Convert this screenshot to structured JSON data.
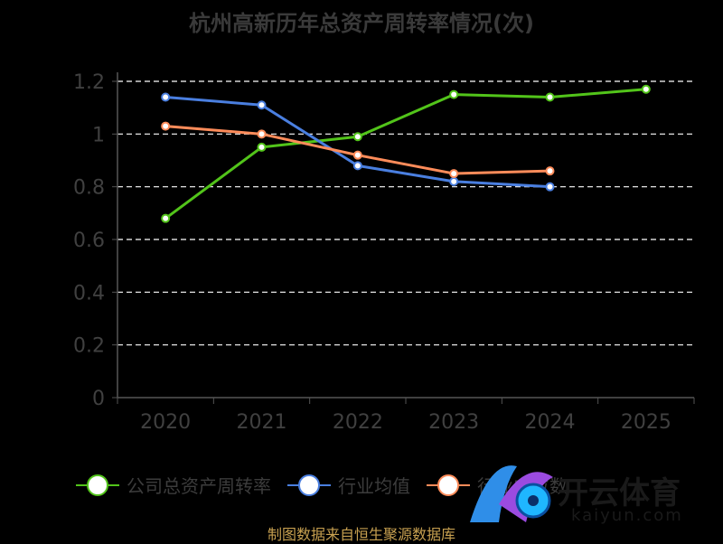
{
  "title": "杭州高新历年总资产周转率情况(次)",
  "unit_label": "",
  "source": "制图数据来自恒生聚源数据库",
  "watermark": {
    "cn": "开云体育",
    "url": "kaiyun.com"
  },
  "chart_data": {
    "type": "line",
    "title": "杭州高新历年总资产周转率情况(次)",
    "x": [
      "2020",
      "2021",
      "2022",
      "2023",
      "2024",
      "2025"
    ],
    "ylim": [
      0,
      1.2
    ],
    "yticks": [
      "0",
      "0.2",
      "0.4",
      "0.6",
      "0.8",
      "1",
      "1.2"
    ],
    "grid": true,
    "legend_position": "bottom",
    "series": [
      {
        "name": "公司总资产周转率",
        "color": "#52c41a",
        "values": [
          0.68,
          0.95,
          0.99,
          1.15,
          1.14,
          1.17
        ]
      },
      {
        "name": "行业均值",
        "color": "#4a7fe0",
        "values": [
          1.14,
          1.11,
          0.88,
          0.82,
          0.8,
          null
        ]
      },
      {
        "name": "行业中位数",
        "color": "#ff8c5a",
        "values": [
          1.03,
          1.0,
          0.92,
          0.85,
          0.86,
          null
        ]
      }
    ]
  }
}
